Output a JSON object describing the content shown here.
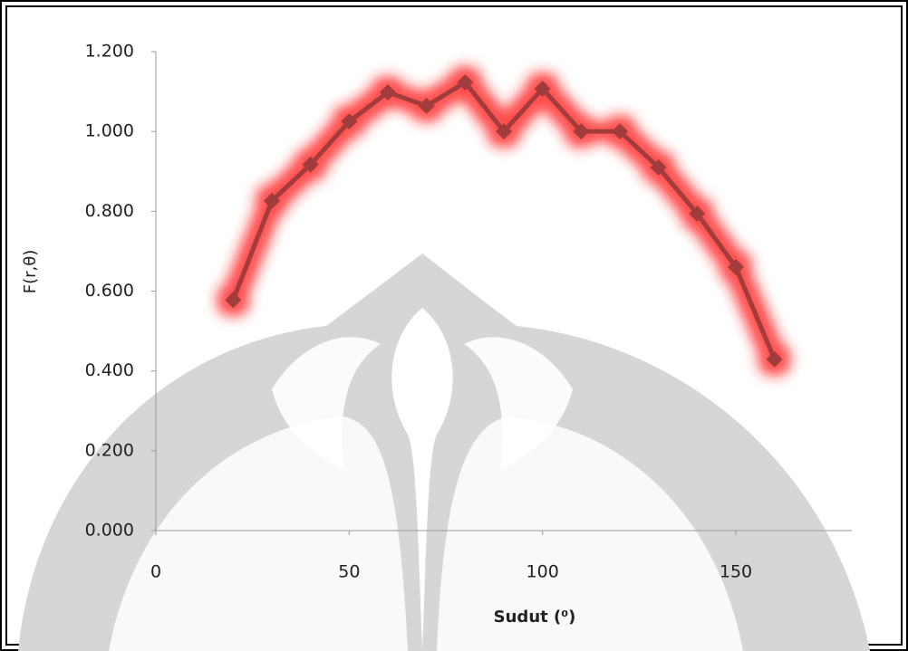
{
  "chart_data": {
    "type": "line",
    "x": [
      20,
      30,
      40,
      50,
      60,
      70,
      80,
      90,
      100,
      110,
      120,
      130,
      140,
      150,
      160
    ],
    "values": [
      0.578,
      0.826,
      0.917,
      1.025,
      1.098,
      1.064,
      1.123,
      1.0,
      1.107,
      1.0,
      1.0,
      0.91,
      0.794,
      0.66,
      0.429
    ],
    "color": "#a23b3b",
    "glow_color": "#ff2020",
    "xlabel": "Sudut   (⁰)",
    "ylabel": "F(r,θ)",
    "xlim": [
      0,
      180
    ],
    "xticks": [
      0,
      50,
      100,
      150
    ],
    "ylim": [
      0,
      1.2
    ],
    "yticks": [
      {
        "value": 0,
        "label": "0.000"
      },
      {
        "value": 0.2,
        "label": "0.200"
      },
      {
        "value": 0.4,
        "label": "0.400"
      },
      {
        "value": 0.6,
        "label": "0.600"
      },
      {
        "value": 0.8,
        "label": "0.800"
      },
      {
        "value": 1.0,
        "label": "1.000"
      },
      {
        "value": 1.2,
        "label": "1.200"
      }
    ],
    "grid": false
  }
}
